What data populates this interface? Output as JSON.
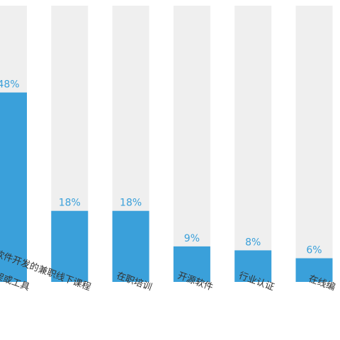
{
  "chart_data": {
    "type": "bar",
    "categories": [
      "自学一门新语言、框架或工具",
      "软件开发的兼职线下课程",
      "在职培训",
      "开源软件",
      "行业认证",
      "在线编"
    ],
    "values": [
      48,
      18,
      18,
      9,
      8,
      6
    ],
    "value_labels": [
      "48%",
      "18%",
      "18%",
      "9%",
      "8%",
      "6%"
    ],
    "ylim": [
      0,
      70
    ],
    "grid": false,
    "legend": "none",
    "colors": {
      "bar": "#3aa0da",
      "track": "#efefef",
      "value_label": "#3aa0da",
      "category_label": "#333333"
    }
  }
}
